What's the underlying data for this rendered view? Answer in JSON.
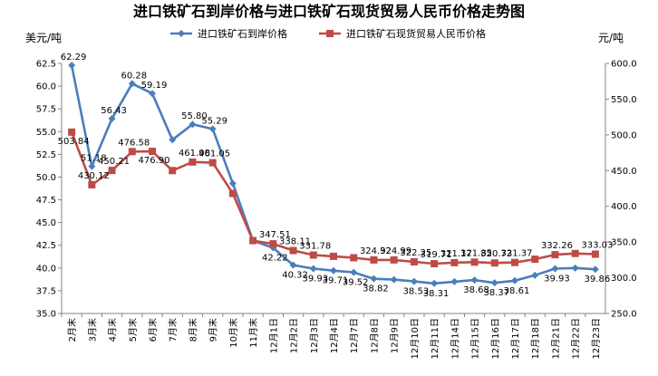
{
  "chart_data": {
    "type": "line",
    "title": "进口铁矿石到岸价格与进口铁矿石现货贸易人民币价格走势图",
    "ylabel_left": "美元/吨",
    "ylabel_right": "元/吨",
    "ylim_left": [
      35.0,
      62.5
    ],
    "ylim_right": [
      250.0,
      600.0
    ],
    "yticks_left": [
      "62.5",
      "60.0",
      "57.5",
      "55.0",
      "52.5",
      "50.0",
      "47.5",
      "45.0",
      "42.5",
      "40.0",
      "37.5",
      "35.0"
    ],
    "yticks_right": [
      "600.0",
      "550.0",
      "500.0",
      "450.0",
      "400.0",
      "350.0",
      "300.0",
      "250.0"
    ],
    "categories": [
      "2月末",
      "3月末",
      "4月末",
      "5月末",
      "6月末",
      "7月末",
      "8月末",
      "9月末",
      "10月末",
      "11月末",
      "12月1日",
      "12月2日",
      "12月3日",
      "12月4日",
      "12月7日",
      "12月8日",
      "12月9日",
      "12月10日",
      "12月11日",
      "12月14日",
      "12月15日",
      "12月16日",
      "12月17日",
      "12月18日",
      "12月21日",
      "12月22日",
      "12月23日"
    ],
    "legend_position": "top",
    "series": [
      {
        "name": "进口铁矿石到岸价格",
        "axis": "left",
        "color": "#4a7ebb",
        "marker": "diamond",
        "values": [
          62.29,
          51.18,
          56.43,
          60.28,
          59.19,
          54.1,
          55.8,
          55.29,
          49.3,
          43.0,
          42.22,
          40.32,
          39.93,
          39.71,
          39.52,
          38.82,
          38.73,
          38.53,
          38.31,
          38.5,
          38.68,
          38.37,
          38.61,
          39.2,
          39.93,
          40.0,
          39.86
        ],
        "labels": [
          "62.29",
          "51.18",
          "56.43",
          "60.28",
          "59.19",
          "",
          "55.80",
          "55.29",
          "",
          "",
          "42.22",
          "40.32",
          "39.93",
          "39.71",
          "39.52",
          "38.82",
          "",
          "38.53",
          "38.31",
          "",
          "38.68",
          "38.37",
          "38.61",
          "",
          "39.93",
          "",
          "39.86"
        ]
      },
      {
        "name": "进口铁矿石现货贸易人民币价格",
        "axis": "right",
        "color": "#be4b48",
        "marker": "square",
        "values": [
          503.84,
          430.12,
          450.21,
          476.58,
          476.9,
          450.0,
          461.98,
          461.05,
          418.0,
          352.0,
          347.51,
          338.11,
          331.78,
          330.0,
          328.0,
          324.92,
          324.99,
          322.25,
          319.71,
          321.17,
          321.85,
          320.73,
          321.37,
          326.0,
          332.26,
          334.0,
          333.03
        ],
        "labels": [
          "503.84",
          "430.12",
          "450.21",
          "476.58",
          "476.90",
          "",
          "461.98",
          "461.05",
          "",
          "",
          "347.51",
          "338.11",
          "331.78",
          "",
          "",
          "324.92",
          "324.99",
          "322.25",
          "319.71",
          "321.17",
          "321.85",
          "320.73",
          "321.37",
          "",
          "332.26",
          "",
          "333.03"
        ]
      }
    ]
  }
}
